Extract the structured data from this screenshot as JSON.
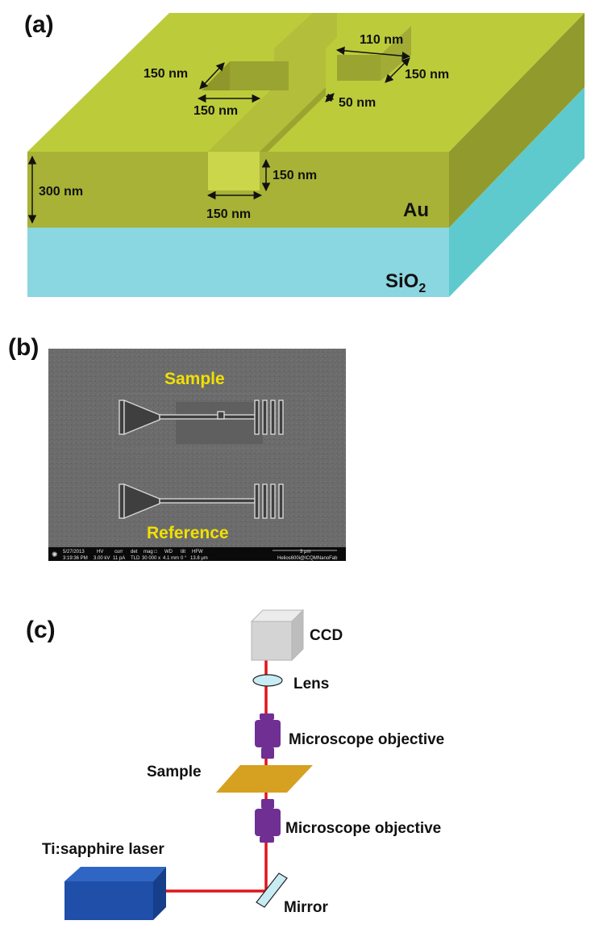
{
  "panel_a": {
    "label": "(a)",
    "dimensions": {
      "top_left_width": "150 nm",
      "top_left_length": "150 nm",
      "top_right_width": "110 nm",
      "top_right_depth": "150 nm",
      "gap": "50 nm",
      "groove_depth": "150 nm",
      "groove_width": "150 nm",
      "film_thickness": "300 nm"
    },
    "materials": {
      "metal": "Au",
      "substrate": "SiO",
      "substrate_subscript": "2"
    },
    "colors": {
      "gold_top": "#bccb3a",
      "gold_front": "#a7b236",
      "gold_side": "#919a2c",
      "substrate_front": "#8ad6e1",
      "substrate_side": "#5fcace"
    }
  },
  "panel_b": {
    "label": "(b)",
    "sample_label": "Sample",
    "reference_label": "Reference",
    "databar": {
      "date": "5/27/2013",
      "time": "3:19:36 PM",
      "hv_header": "HV",
      "hv": "3.00 kV",
      "curr_header": "curr",
      "curr": "11 pA",
      "det_header": "det",
      "det": "TLD",
      "mag_header": "mag □",
      "mag": "30 000 x",
      "wd_header": "WD",
      "wd": "4.1 mm",
      "tilt_header": "tilt",
      "tilt": "0 °",
      "hfw_header": "HFW",
      "hfw": "13.8 μm",
      "scale": "3 μm",
      "instrument": "Helios600i@ICQMNanoFab"
    }
  },
  "panel_c": {
    "label": "(c)",
    "ccd": "CCD",
    "lens": "Lens",
    "objective_top": "Microscope objective",
    "sample": "Sample",
    "objective_bottom": "Microscope objective",
    "laser": "Ti:sapphire laser",
    "mirror": "Mirror",
    "colors": {
      "beam": "#e0141c",
      "objective": "#6f2f93",
      "sample": "#d6a021",
      "laser": "#1f4fa8",
      "ccd": "#d4d4d4",
      "optic": "#c8ecf4"
    }
  }
}
